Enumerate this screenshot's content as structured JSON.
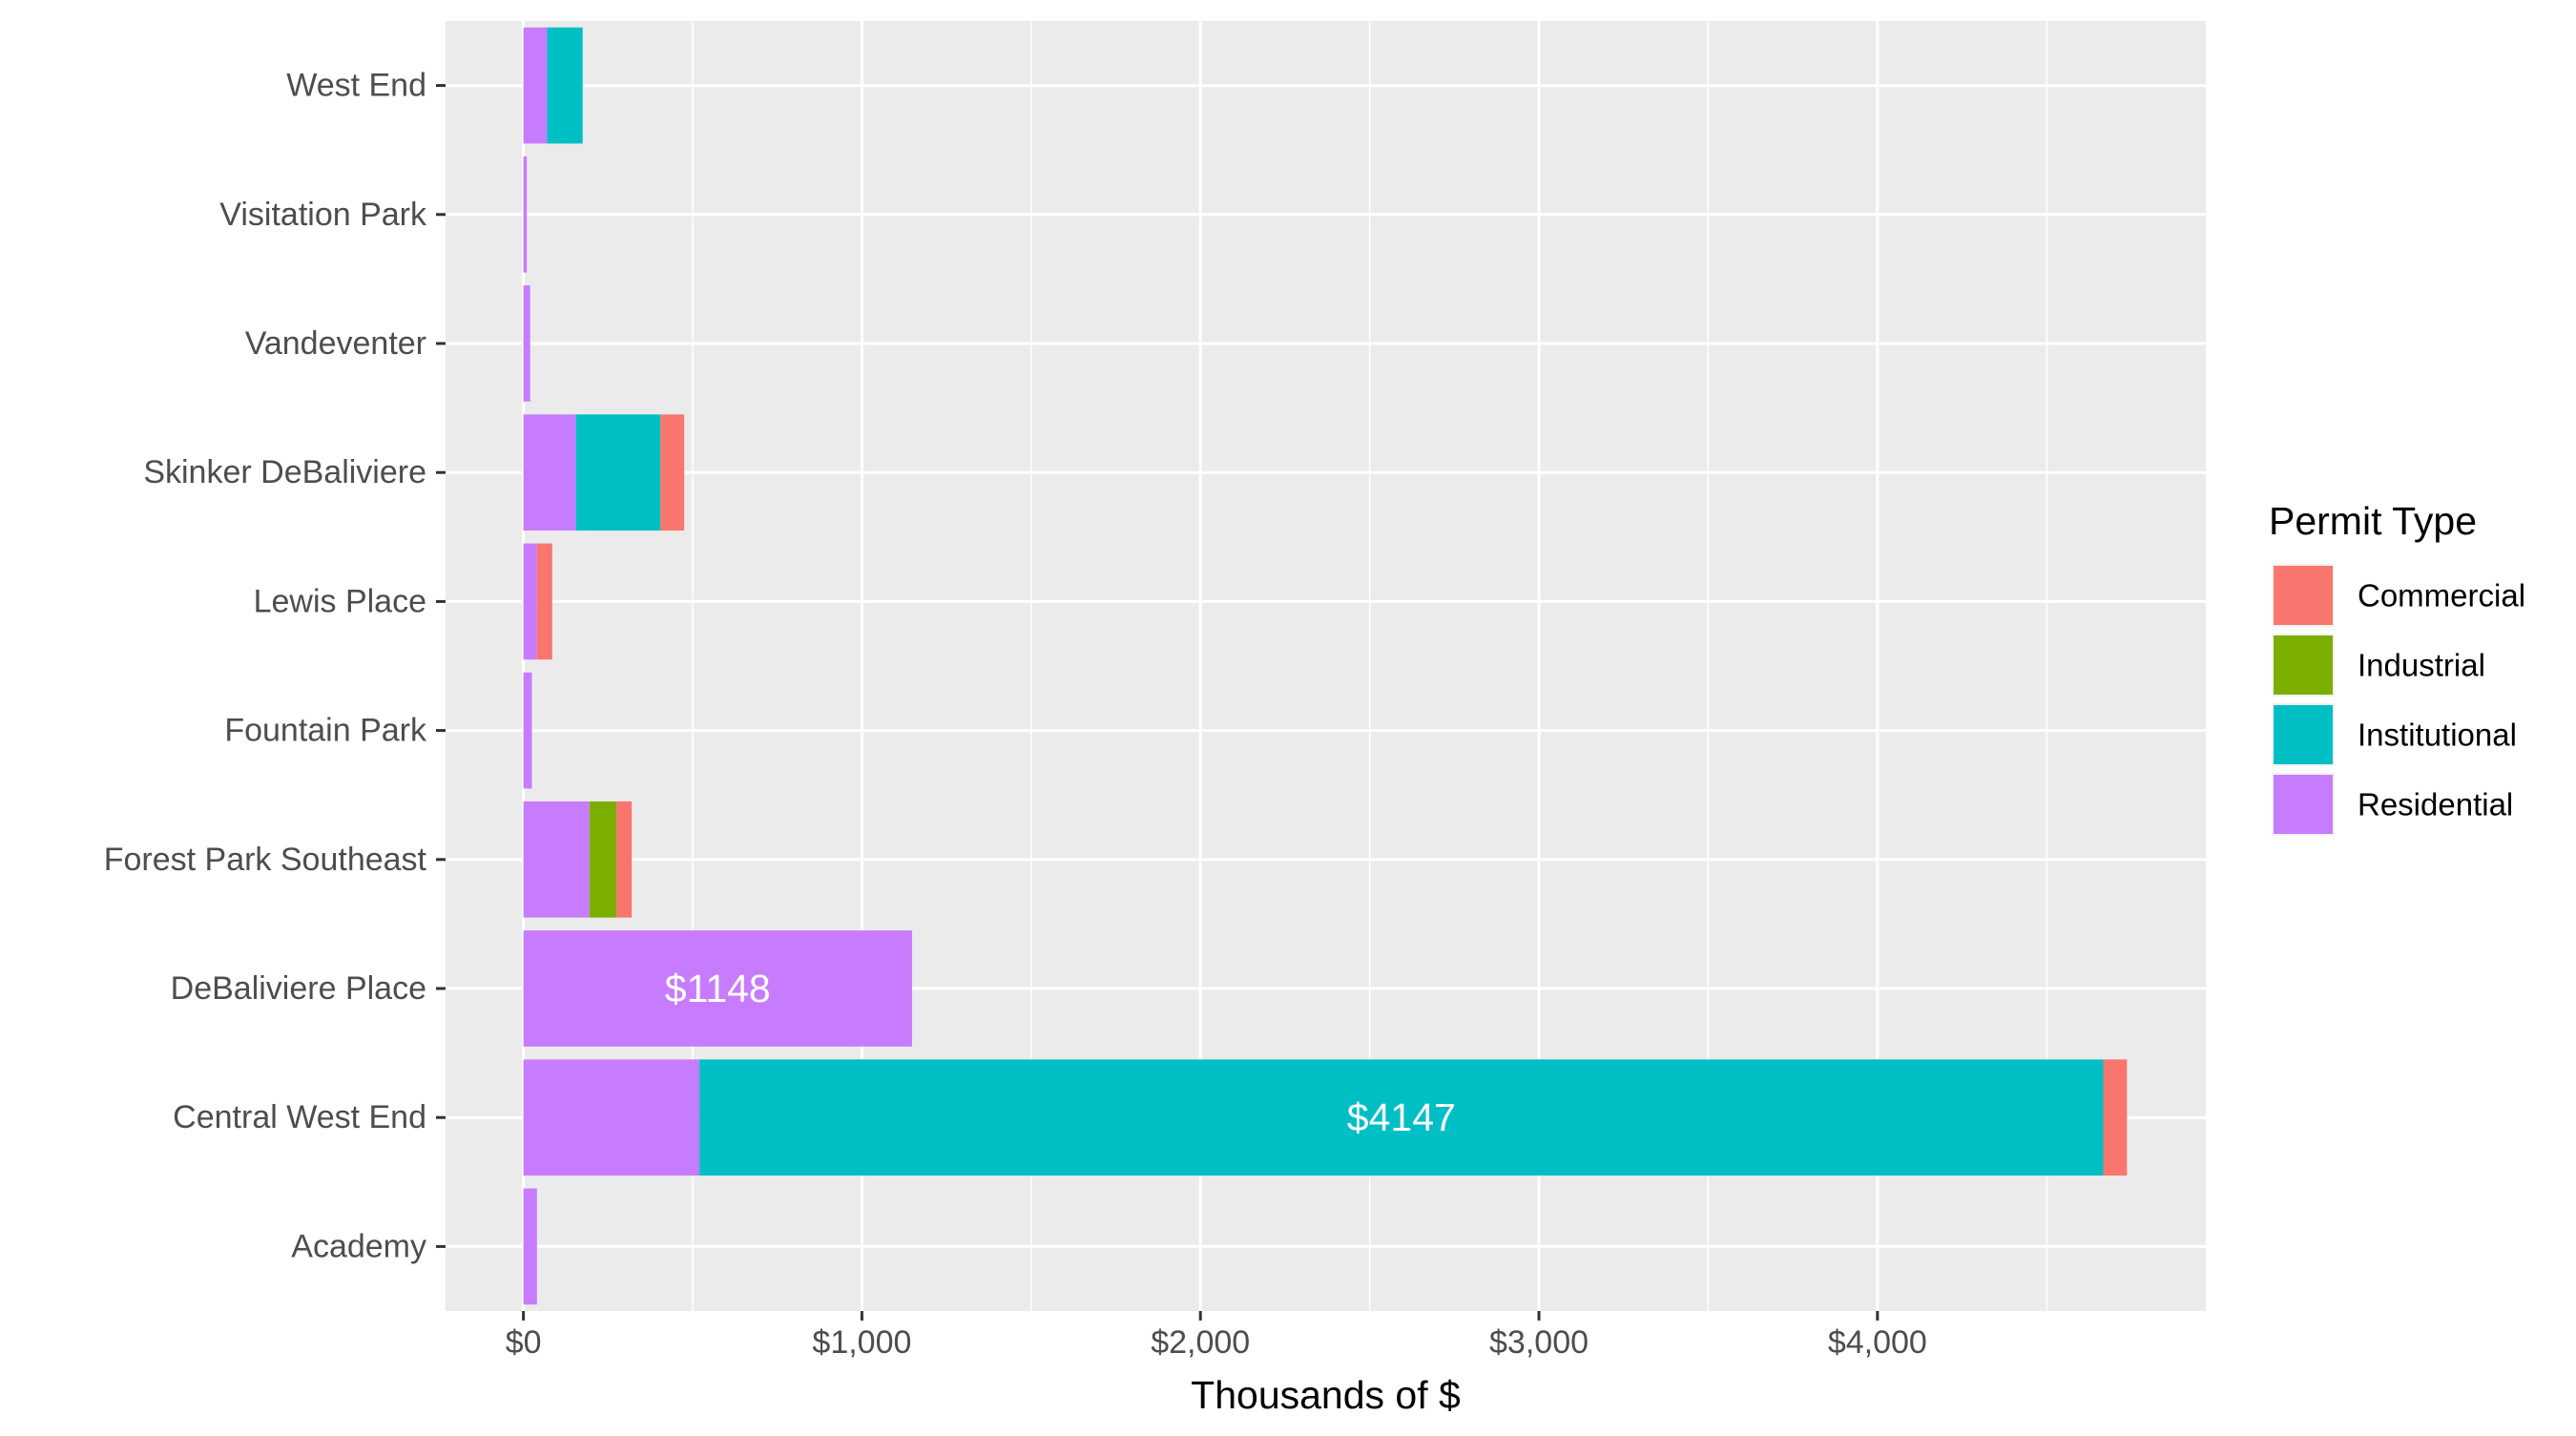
{
  "chart_data": {
    "type": "bar",
    "orientation": "horizontal",
    "stacked": true,
    "categories": [
      "West End",
      "Visitation Park",
      "Vandeventer",
      "Skinker DeBaliviere",
      "Lewis Place",
      "Fountain Park",
      "Forest Park Southeast",
      "DeBaliviere Place",
      "Central West End",
      "Academy"
    ],
    "series": [
      {
        "name": "Residential",
        "color": "#C77CFF",
        "values": [
          70,
          10,
          20,
          155,
          40,
          25,
          195,
          1148,
          520,
          40
        ]
      },
      {
        "name": "Institutional",
        "color": "#00BFC4",
        "values": [
          105,
          0,
          0,
          250,
          0,
          0,
          0,
          0,
          4147,
          0
        ]
      },
      {
        "name": "Industrial",
        "color": "#7CAE00",
        "values": [
          0,
          0,
          0,
          0,
          0,
          0,
          80,
          0,
          0,
          0
        ]
      },
      {
        "name": "Commercial",
        "color": "#F8766D",
        "values": [
          0,
          0,
          0,
          70,
          45,
          0,
          45,
          0,
          70,
          0
        ]
      }
    ],
    "stack_order": [
      "Residential",
      "Institutional",
      "Industrial",
      "Commercial"
    ],
    "annotations": [
      {
        "category": "DeBaliviere Place",
        "series": "Residential",
        "text": "$1148"
      },
      {
        "category": "Central West End",
        "series": "Institutional",
        "text": "$4147"
      }
    ],
    "xlabel": "Thousands of $",
    "ylabel": "",
    "title": "",
    "xlim": [
      -230,
      4970
    ],
    "xticks": [
      0,
      1000,
      2000,
      3000,
      4000
    ],
    "xtick_labels": [
      "$0",
      "$1,000",
      "$2,000",
      "$3,000",
      "$4,000"
    ],
    "grid": true,
    "panel_background": "#EBEBEB",
    "grid_color": "#FFFFFF",
    "legend": {
      "title": "Permit Type",
      "position": "right",
      "items": [
        {
          "label": "Commercial",
          "color": "#F8766D"
        },
        {
          "label": "Industrial",
          "color": "#7CAE00"
        },
        {
          "label": "Institutional",
          "color": "#00BFC4"
        },
        {
          "label": "Residential",
          "color": "#C77CFF"
        }
      ]
    }
  }
}
